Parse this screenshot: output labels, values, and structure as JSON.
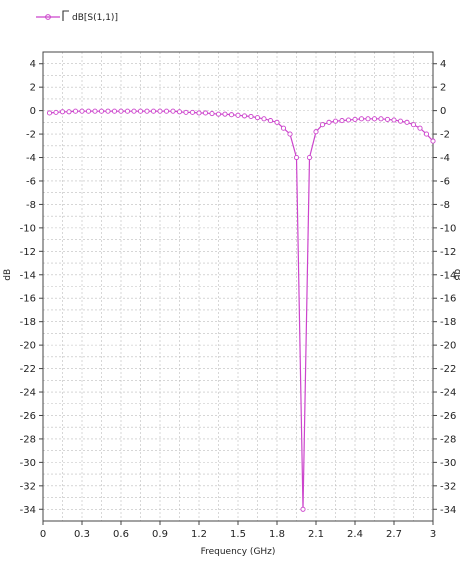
{
  "chart_data": {
    "type": "line",
    "title": "",
    "xlabel": "Frequency (GHz)",
    "ylabel": "dB",
    "right_ylabel": "dB",
    "xlim": [
      0,
      3
    ],
    "ylim": [
      -35,
      5
    ],
    "x_ticks": [
      {
        "value": 0,
        "label": "0"
      },
      {
        "value": 0.3,
        "label": "0.3"
      },
      {
        "value": 0.6,
        "label": "0.6"
      },
      {
        "value": 0.9,
        "label": "0.9"
      },
      {
        "value": 1.2,
        "label": "1.2"
      },
      {
        "value": 1.5,
        "label": "1.5"
      },
      {
        "value": 1.8,
        "label": "1.8"
      },
      {
        "value": 2.1,
        "label": "2.1"
      },
      {
        "value": 2.4,
        "label": "2.4"
      },
      {
        "value": 2.7,
        "label": "2.7"
      },
      {
        "value": 3,
        "label": "3"
      }
    ],
    "y_ticks": [
      {
        "value": 4,
        "label": "4"
      },
      {
        "value": 2,
        "label": "2"
      },
      {
        "value": 0,
        "label": "0"
      },
      {
        "value": -2,
        "label": "-2"
      },
      {
        "value": -4,
        "label": "-4"
      },
      {
        "value": -6,
        "label": "-6"
      },
      {
        "value": -8,
        "label": "-8"
      },
      {
        "value": -10,
        "label": "-10"
      },
      {
        "value": -12,
        "label": "-12"
      },
      {
        "value": -14,
        "label": "-14"
      },
      {
        "value": -16,
        "label": "-16"
      },
      {
        "value": -18,
        "label": "-18"
      },
      {
        "value": -20,
        "label": "-20"
      },
      {
        "value": -22,
        "label": "-22"
      },
      {
        "value": -24,
        "label": "-24"
      },
      {
        "value": -26,
        "label": "-26"
      },
      {
        "value": -28,
        "label": "-28"
      },
      {
        "value": -30,
        "label": "-30"
      },
      {
        "value": -32,
        "label": "-32"
      },
      {
        "value": -34,
        "label": "-34"
      }
    ],
    "grid": true,
    "legend_position": "top-left",
    "series": [
      {
        "name": "dB[S(1,1)]",
        "color": "#cc44cc",
        "marker": "circle",
        "points": [
          [
            0.05,
            -0.2
          ],
          [
            0.1,
            -0.15
          ],
          [
            0.15,
            -0.1
          ],
          [
            0.2,
            -0.1
          ],
          [
            0.25,
            -0.05
          ],
          [
            0.3,
            -0.05
          ],
          [
            0.35,
            -0.05
          ],
          [
            0.4,
            -0.05
          ],
          [
            0.45,
            -0.05
          ],
          [
            0.5,
            -0.05
          ],
          [
            0.55,
            -0.05
          ],
          [
            0.6,
            -0.05
          ],
          [
            0.65,
            -0.05
          ],
          [
            0.7,
            -0.05
          ],
          [
            0.75,
            -0.05
          ],
          [
            0.8,
            -0.05
          ],
          [
            0.85,
            -0.05
          ],
          [
            0.9,
            -0.05
          ],
          [
            0.95,
            -0.05
          ],
          [
            1.0,
            -0.05
          ],
          [
            1.05,
            -0.1
          ],
          [
            1.1,
            -0.15
          ],
          [
            1.15,
            -0.15
          ],
          [
            1.2,
            -0.2
          ],
          [
            1.25,
            -0.2
          ],
          [
            1.3,
            -0.25
          ],
          [
            1.35,
            -0.3
          ],
          [
            1.4,
            -0.3
          ],
          [
            1.45,
            -0.35
          ],
          [
            1.5,
            -0.4
          ],
          [
            1.55,
            -0.45
          ],
          [
            1.6,
            -0.5
          ],
          [
            1.65,
            -0.6
          ],
          [
            1.7,
            -0.7
          ],
          [
            1.75,
            -0.85
          ],
          [
            1.8,
            -1.0
          ],
          [
            1.85,
            -1.5
          ],
          [
            1.9,
            -2.0
          ],
          [
            1.95,
            -4.0
          ],
          [
            2.0,
            -34.0
          ],
          [
            2.05,
            -4.0
          ],
          [
            2.1,
            -1.8
          ],
          [
            2.15,
            -1.2
          ],
          [
            2.2,
            -1.0
          ],
          [
            2.25,
            -0.9
          ],
          [
            2.3,
            -0.85
          ],
          [
            2.35,
            -0.8
          ],
          [
            2.4,
            -0.75
          ],
          [
            2.45,
            -0.7
          ],
          [
            2.5,
            -0.7
          ],
          [
            2.55,
            -0.7
          ],
          [
            2.6,
            -0.7
          ],
          [
            2.65,
            -0.75
          ],
          [
            2.7,
            -0.8
          ],
          [
            2.75,
            -0.9
          ],
          [
            2.8,
            -1.0
          ],
          [
            2.85,
            -1.2
          ],
          [
            2.9,
            -1.5
          ],
          [
            2.95,
            -2.0
          ],
          [
            3.0,
            -2.6
          ]
        ]
      }
    ]
  }
}
